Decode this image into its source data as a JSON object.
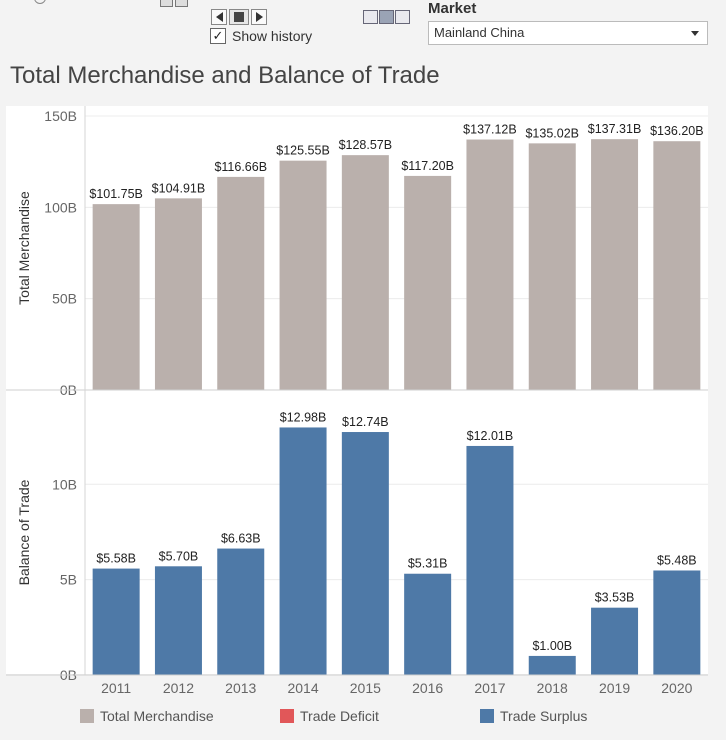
{
  "controls": {
    "show_history_label": "Show history",
    "show_history_checked": "✓",
    "market_label": "Market",
    "market_value": "Mainland China"
  },
  "title": "Total Merchandise and Balance of Trade",
  "colors": {
    "total": "#bab0ac",
    "deficit": "#e15759",
    "surplus": "#4e79a7",
    "grid": "#ececec",
    "axis_text": "#666666"
  },
  "legend": [
    {
      "label": "Total Merchandise",
      "color": "#bab0ac"
    },
    {
      "label": "Trade Deficit",
      "color": "#e15759"
    },
    {
      "label": "Trade Surplus",
      "color": "#4e79a7"
    }
  ],
  "chart_data": [
    {
      "type": "bar",
      "ylabel": "Total Merchandise",
      "categories": [
        "2011",
        "2012",
        "2013",
        "2014",
        "2015",
        "2016",
        "2017",
        "2018",
        "2019",
        "2020"
      ],
      "values": [
        101.75,
        104.91,
        116.66,
        125.55,
        128.57,
        117.2,
        137.12,
        135.02,
        137.31,
        136.2
      ],
      "labels": [
        "$101.75B",
        "$104.91B",
        "$116.66B",
        "$125.55B",
        "$128.57B",
        "$117.20B",
        "$137.12B",
        "$135.02B",
        "$137.31B",
        "$136.20B"
      ],
      "yticks": [
        {
          "v": 0,
          "label": "0B"
        },
        {
          "v": 50,
          "label": "50B"
        },
        {
          "v": 100,
          "label": "100B"
        },
        {
          "v": 150,
          "label": "150B"
        }
      ],
      "ylim": [
        0,
        150
      ]
    },
    {
      "type": "bar",
      "ylabel": "Balance of Trade",
      "categories": [
        "2011",
        "2012",
        "2013",
        "2014",
        "2015",
        "2016",
        "2017",
        "2018",
        "2019",
        "2020"
      ],
      "values": [
        5.58,
        5.7,
        6.63,
        12.98,
        12.74,
        5.31,
        12.01,
        1.0,
        3.53,
        5.48
      ],
      "labels": [
        "$5.58B",
        "$5.70B",
        "$6.63B",
        "$12.98B",
        "$12.74B",
        "$5.31B",
        "$12.01B",
        "$1.00B",
        "$3.53B",
        "$5.48B"
      ],
      "yticks": [
        {
          "v": 0,
          "label": "0B"
        },
        {
          "v": 5,
          "label": "5B"
        },
        {
          "v": 10,
          "label": "10B"
        }
      ],
      "ylim": [
        0,
        14
      ]
    }
  ]
}
